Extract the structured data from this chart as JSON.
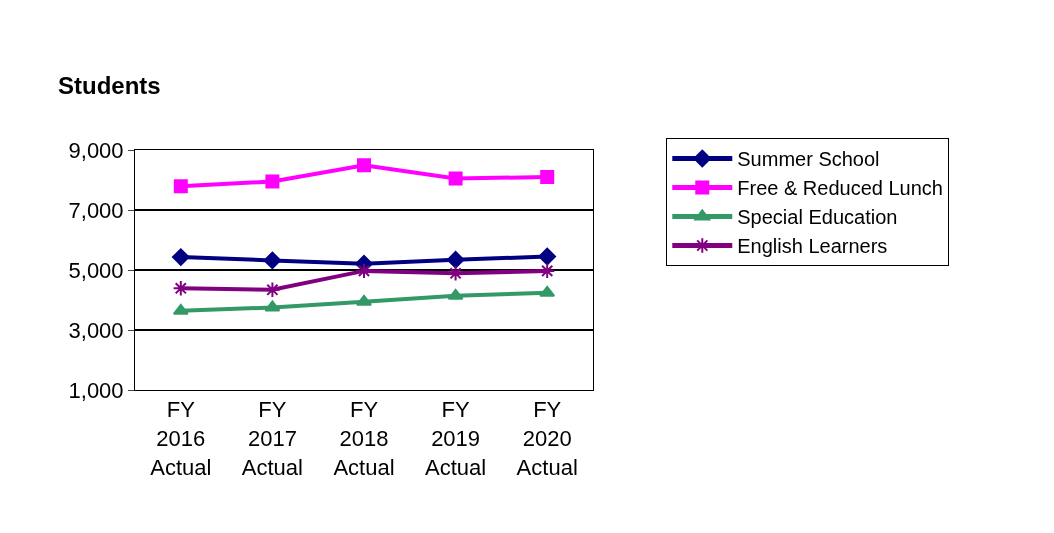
{
  "chart_data": {
    "type": "line",
    "title": "Students",
    "categories": [
      "FY\n2016\nActual",
      "FY\n2017\nActual",
      "FY\n2018\nActual",
      "FY\n2019\nActual",
      "FY\n2020\nActual"
    ],
    "series": [
      {
        "name": "Summer School",
        "color": "#000080",
        "marker": "diamond",
        "values": [
          5430,
          5320,
          5210,
          5340,
          5450
        ]
      },
      {
        "name": "Free & Reduced Lunch",
        "color": "#ff00ff",
        "marker": "square",
        "values": [
          7790,
          7950,
          8490,
          8050,
          8100
        ]
      },
      {
        "name": "Special Education",
        "color": "#339966",
        "marker": "triangle",
        "values": [
          3640,
          3750,
          3940,
          4140,
          4240
        ]
      },
      {
        "name": "English Learners",
        "color": "#800080",
        "marker": "cross",
        "values": [
          4390,
          4340,
          4970,
          4890,
          4970
        ]
      }
    ],
    "ylim": [
      1000,
      9000
    ],
    "yticks": [
      {
        "value": 1000,
        "label": "1,000"
      },
      {
        "value": 3000,
        "label": "3,000"
      },
      {
        "value": 5000,
        "label": "5,000"
      },
      {
        "value": 7000,
        "label": "7,000"
      },
      {
        "value": 9000,
        "label": "9,000"
      }
    ],
    "grid": "y",
    "legend": "right",
    "line_style": "solid"
  }
}
